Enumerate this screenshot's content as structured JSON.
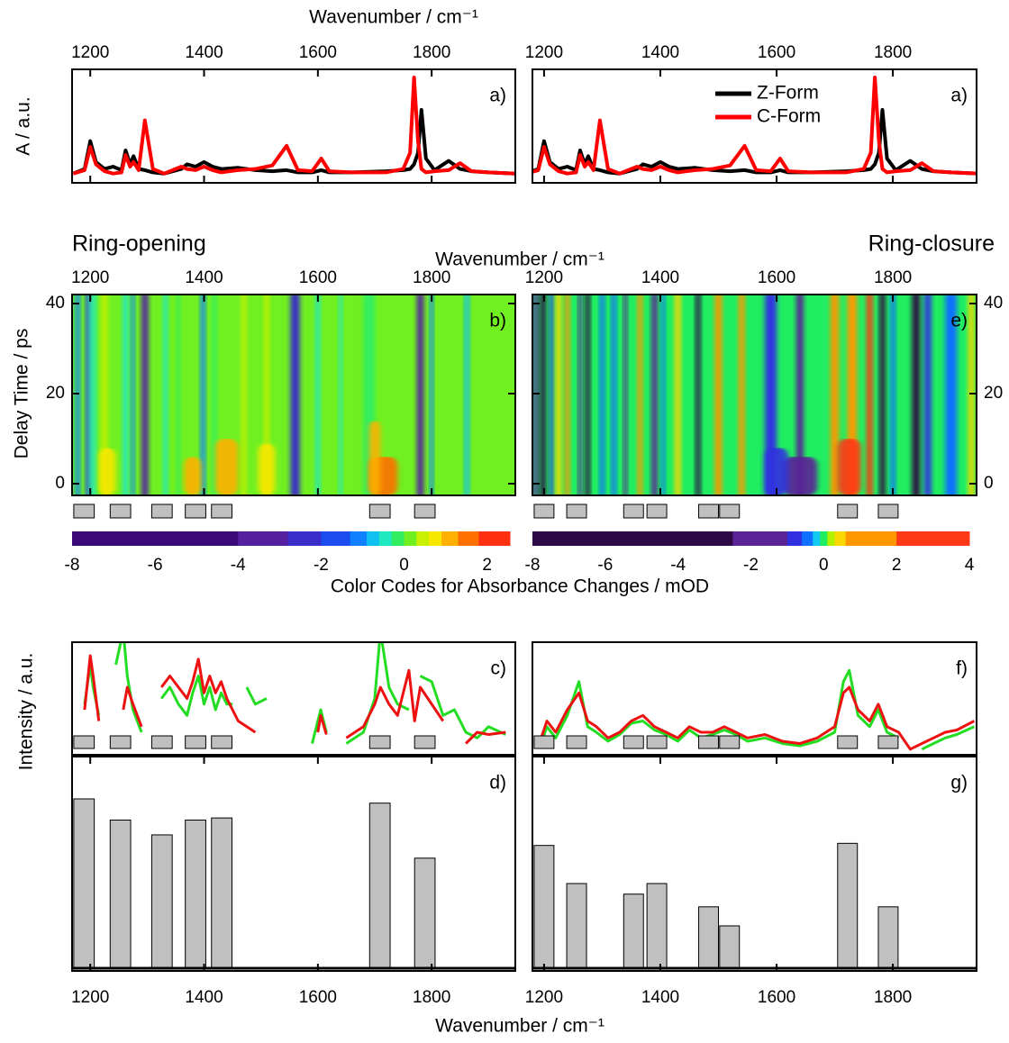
{
  "chart_data": [
    {
      "type": "line",
      "label": "a)",
      "xlabel": "Wavenumber / cm⁻¹",
      "ylabel": "A / a.u.",
      "xlim": [
        1168,
        1947
      ],
      "xticks": [
        1200,
        1400,
        1600,
        1800
      ],
      "ylim": [
        -0.06,
        0.92
      ],
      "x": [
        1170,
        1190,
        1200,
        1210,
        1225,
        1240,
        1255,
        1262,
        1270,
        1276,
        1285,
        1296,
        1310,
        1330,
        1360,
        1370,
        1385,
        1400,
        1415,
        1430,
        1460,
        1490,
        1520,
        1545,
        1565,
        1590,
        1606,
        1620,
        1660,
        1720,
        1750,
        1762,
        1769,
        1776,
        1782,
        1790,
        1805,
        1830,
        1850,
        1870,
        1900,
        1947
      ],
      "series": [
        {
          "color": "#000000",
          "values": [
            0.02,
            0.06,
            0.3,
            0.12,
            0.06,
            0.08,
            0.05,
            0.22,
            0.1,
            0.17,
            0.06,
            0.05,
            0.03,
            0.02,
            0.06,
            0.1,
            0.08,
            0.12,
            0.08,
            0.06,
            0.07,
            0.05,
            0.04,
            0.05,
            0.03,
            0.03,
            0.05,
            0.03,
            0.03,
            0.04,
            0.05,
            0.06,
            0.1,
            0.2,
            0.57,
            0.15,
            0.05,
            0.13,
            0.06,
            0.04,
            0.03,
            0.02
          ]
        },
        {
          "color": "#ff0000",
          "values": [
            0.02,
            0.05,
            0.25,
            0.1,
            0.04,
            0.02,
            0.03,
            0.18,
            0.08,
            0.12,
            0.05,
            0.48,
            0.06,
            0.02,
            0.08,
            0.06,
            0.05,
            0.08,
            0.05,
            0.03,
            0.05,
            0.06,
            0.09,
            0.26,
            0.05,
            0.04,
            0.15,
            0.04,
            0.03,
            0.03,
            0.06,
            0.2,
            0.85,
            0.3,
            0.06,
            0.03,
            0.04,
            0.05,
            0.11,
            0.04,
            0.03,
            0.02
          ]
        }
      ]
    },
    {
      "type": "line",
      "label": "a)",
      "legend": "upper right",
      "xlim": [
        1180,
        1944
      ],
      "xticks": [
        1200,
        1400,
        1600,
        1800
      ],
      "ylim": [
        -0.06,
        0.92
      ],
      "x": [
        1170,
        1190,
        1200,
        1210,
        1225,
        1240,
        1255,
        1262,
        1270,
        1276,
        1285,
        1296,
        1310,
        1330,
        1360,
        1370,
        1385,
        1400,
        1415,
        1430,
        1460,
        1490,
        1520,
        1545,
        1565,
        1590,
        1606,
        1620,
        1660,
        1720,
        1750,
        1762,
        1769,
        1776,
        1782,
        1790,
        1805,
        1830,
        1850,
        1870,
        1900,
        1947
      ],
      "series": [
        {
          "name": "Z-Form",
          "color": "#000000",
          "values": [
            0.02,
            0.06,
            0.3,
            0.12,
            0.06,
            0.08,
            0.05,
            0.22,
            0.1,
            0.17,
            0.06,
            0.05,
            0.03,
            0.02,
            0.06,
            0.1,
            0.08,
            0.12,
            0.08,
            0.06,
            0.07,
            0.05,
            0.04,
            0.05,
            0.03,
            0.03,
            0.05,
            0.03,
            0.03,
            0.04,
            0.05,
            0.06,
            0.1,
            0.2,
            0.57,
            0.15,
            0.05,
            0.13,
            0.06,
            0.04,
            0.03,
            0.02
          ]
        },
        {
          "name": "C-Form",
          "color": "#ff0000",
          "values": [
            0.02,
            0.05,
            0.25,
            0.1,
            0.04,
            0.02,
            0.03,
            0.18,
            0.08,
            0.12,
            0.05,
            0.48,
            0.06,
            0.02,
            0.08,
            0.06,
            0.05,
            0.08,
            0.05,
            0.03,
            0.05,
            0.06,
            0.09,
            0.26,
            0.05,
            0.04,
            0.15,
            0.04,
            0.03,
            0.03,
            0.06,
            0.2,
            0.85,
            0.3,
            0.06,
            0.03,
            0.04,
            0.05,
            0.11,
            0.04,
            0.03,
            0.02
          ]
        }
      ]
    },
    {
      "type": "heatmap",
      "title": "Ring-opening",
      "label": "b)",
      "xlabel": "Wavenumber / cm⁻¹",
      "ylabel": "Delay Time / ps",
      "xlim": [
        1168,
        1947
      ],
      "xticks": [
        1200,
        1400,
        1600,
        1800
      ],
      "ylim": [
        -2.6,
        42
      ],
      "yticks": [
        0,
        20,
        40
      ],
      "background": 0.15,
      "stripes": {
        "x": [
          1178,
          1196,
          1205,
          1225,
          1262,
          1275,
          1296,
          1332,
          1355,
          1398,
          1418,
          1470,
          1510,
          1560,
          1600,
          1640,
          1690,
          1780,
          1800,
          1862
        ],
        "widths": [
          8,
          8,
          10,
          10,
          10,
          6,
          12,
          8,
          6,
          8,
          8,
          8,
          8,
          16,
          8,
          6,
          20,
          12,
          6,
          8
        ],
        "values": [
          -1.2,
          -1.5,
          -0.6,
          0.4,
          -0.4,
          -1,
          -3,
          -0.5,
          -0.3,
          -1,
          -0.3,
          0.3,
          0.5,
          -2.7,
          -0.6,
          -0.5,
          -0.3,
          -3.2,
          -1.2,
          -0.9
        ]
      },
      "early": {
        "x": [
          1230,
          1380,
          1440,
          1510,
          1715,
          1700
        ],
        "widths": [
          30,
          30,
          40,
          30,
          50,
          20
        ],
        "values": [
          0.8,
          0.9,
          1.0,
          0.8,
          1.6,
          1.0
        ],
        "t_end": [
          8,
          6,
          10,
          9,
          6,
          14
        ]
      },
      "colorbar": {
        "label": "Color Codes for Absorbance Changes / mOD",
        "bounds": [
          -8,
          -4,
          -2.8,
          -2,
          -1.3,
          -0.9,
          -0.6,
          -0.3,
          0,
          0.3,
          0.6,
          0.9,
          1.3,
          1.8,
          2.55
        ],
        "colors": [
          "#3c0a78",
          "#5520a0",
          "#3a2cc8",
          "#1a4cf0",
          "#1080ff",
          "#10c0f0",
          "#20e8c0",
          "#30ee60",
          "#70f020",
          "#c8f000",
          "#f8e800",
          "#ffb000",
          "#ff7000",
          "#ff3010"
        ],
        "ticks": [
          -8,
          -6,
          -4,
          -2,
          0,
          2
        ]
      }
    },
    {
      "type": "heatmap",
      "title": "Ring-closure",
      "label": "e)",
      "xlim": [
        1180,
        1944
      ],
      "xticks": [
        1200,
        1400,
        1600,
        1800
      ],
      "ylim": [
        -2.6,
        42
      ],
      "yticks": [
        0,
        20,
        40
      ],
      "background": 0.05,
      "stripes": {
        "x": [
          1185,
          1198,
          1213,
          1225,
          1240,
          1262,
          1275,
          1300,
          1320,
          1340,
          1365,
          1390,
          1405,
          1430,
          1465,
          1500,
          1540,
          1590,
          1640,
          1700,
          1730,
          1760,
          1782,
          1800,
          1840,
          1860,
          1900,
          1935
        ],
        "widths": [
          8,
          10,
          6,
          10,
          8,
          6,
          8,
          8,
          8,
          6,
          8,
          10,
          6,
          10,
          8,
          12,
          10,
          20,
          12,
          14,
          16,
          10,
          10,
          8,
          14,
          12,
          20,
          10
        ],
        "values": [
          -1.5,
          -3.2,
          -1,
          0.5,
          0.9,
          -1.3,
          -3,
          -0.5,
          -0.4,
          -1.3,
          0.8,
          -1.8,
          -0.6,
          0.3,
          -2.8,
          0.7,
          0.6,
          -0.7,
          -1.3,
          0.9,
          1.5,
          2.6,
          -3.2,
          -0.4,
          -2.6,
          -0.9,
          -0.4,
          0.3
        ]
      },
      "early": {
        "x": [
          1725,
          1640,
          1600
        ],
        "widths": [
          40,
          60,
          40
        ],
        "values": [
          2.2,
          -1.5,
          -1.0
        ],
        "t_end": [
          10,
          6,
          8
        ]
      },
      "colorbar": {
        "bounds": [
          -8,
          -2.5,
          -1,
          -0.6,
          -0.3,
          -0.1,
          0.1,
          0.3,
          0.6,
          2,
          4
        ],
        "colors": [
          "#2d0a45",
          "#5a2396",
          "#3030e0",
          "#1070ff",
          "#10c8f0",
          "#20ee60",
          "#b0f000",
          "#f8d800",
          "#ff9800",
          "#ff3818"
        ],
        "ticks": [
          -8,
          -6,
          -4,
          -2,
          0,
          2,
          4
        ]
      }
    },
    {
      "type": "line",
      "label": "c)",
      "xlim": [
        1168,
        1947
      ],
      "ylim": [
        0,
        100
      ],
      "x": [
        1190,
        1200,
        1205,
        1215,
        1230,
        1245,
        1258,
        1265,
        1275,
        1290,
        1310,
        1325,
        1340,
        1355,
        1370,
        1380,
        1390,
        1400,
        1410,
        1420,
        1430,
        1440,
        1450,
        1460,
        1475,
        1490,
        1510,
        1530,
        1550,
        1570,
        1590,
        1600,
        1605,
        1615,
        1630,
        1650,
        1680,
        1700,
        1710,
        1725,
        1740,
        1760,
        1770,
        1780,
        1800,
        1820,
        1840,
        1860,
        1880,
        1900,
        1930
      ],
      "series": [
        {
          "color": "#22dd22",
          "values": [
            45,
            80,
            60,
            35,
            null,
            80,
            110,
            70,
            40,
            20,
            null,
            50,
            60,
            45,
            35,
            55,
            70,
            45,
            60,
            40,
            55,
            45,
            45,
            null,
            60,
            45,
            50,
            null,
            40,
            null,
            10,
            30,
            40,
            20,
            null,
            10,
            20,
            50,
            110,
            60,
            45,
            40,
            null,
            70,
            65,
            35,
            40,
            20,
            15,
            25,
            18
          ]
        },
        {
          "color": "#ee1111",
          "values": [
            40,
            88,
            70,
            30,
            null,
            null,
            40,
            60,
            45,
            25,
            null,
            60,
            70,
            60,
            50,
            65,
            85,
            55,
            70,
            55,
            65,
            50,
            40,
            30,
            25,
            20,
            null,
            null,
            null,
            null,
            null,
            20,
            35,
            18,
            null,
            15,
            25,
            45,
            60,
            45,
            35,
            75,
            30,
            60,
            45,
            30,
            null,
            10,
            20,
            18,
            20
          ]
        }
      ]
    },
    {
      "type": "line",
      "label": "f)",
      "xlim": [
        1180,
        1944
      ],
      "ylim": [
        0,
        100
      ],
      "x": [
        1185,
        1195,
        1205,
        1220,
        1240,
        1260,
        1275,
        1290,
        1310,
        1330,
        1350,
        1370,
        1390,
        1410,
        1430,
        1450,
        1470,
        1490,
        1510,
        1530,
        1550,
        1580,
        1610,
        1640,
        1670,
        1700,
        1715,
        1725,
        1740,
        1760,
        1775,
        1790,
        1810,
        1830,
        1850,
        1870,
        1890,
        1910,
        1940
      ],
      "series": [
        {
          "color": "#22dd22",
          "values": [
            null,
            10,
            25,
            15,
            35,
            65,
            25,
            20,
            12,
            18,
            28,
            30,
            22,
            18,
            12,
            22,
            15,
            18,
            22,
            18,
            12,
            15,
            10,
            8,
            12,
            20,
            65,
            75,
            35,
            25,
            40,
            20,
            15,
            null,
            5,
            10,
            15,
            18,
            25
          ]
        },
        {
          "color": "#ee1111",
          "values": [
            null,
            15,
            30,
            20,
            40,
            55,
            30,
            25,
            15,
            20,
            30,
            35,
            25,
            20,
            15,
            25,
            20,
            20,
            25,
            20,
            15,
            18,
            12,
            10,
            15,
            25,
            55,
            60,
            40,
            30,
            45,
            25,
            20,
            5,
            10,
            15,
            20,
            22,
            30
          ]
        }
      ]
    },
    {
      "type": "bar",
      "label": "d)",
      "xlabel": "Wavenumber / cm⁻¹",
      "ylabel": "Intensity / a.u.",
      "xlim": [
        1168,
        1947
      ],
      "xticks": [
        1200,
        1400,
        1600,
        1800
      ],
      "ylim": [
        -1.3,
        100
      ],
      "color": "#c0c0c0",
      "width": 36,
      "x": [
        1189,
        1253,
        1326,
        1385,
        1431,
        1709,
        1788
      ],
      "values": [
        80,
        70,
        63,
        70,
        71,
        78,
        52
      ]
    },
    {
      "type": "bar",
      "label": "g)",
      "xlim": [
        1180,
        1944
      ],
      "xticks": [
        1200,
        1400,
        1600,
        1800
      ],
      "ylim": [
        -1.3,
        100
      ],
      "color": "#c0c0c0",
      "width": 34,
      "x": [
        1200,
        1256,
        1354,
        1394,
        1483,
        1519,
        1722,
        1792
      ],
      "values": [
        58,
        40,
        35,
        40,
        29,
        20,
        59,
        29
      ]
    }
  ]
}
